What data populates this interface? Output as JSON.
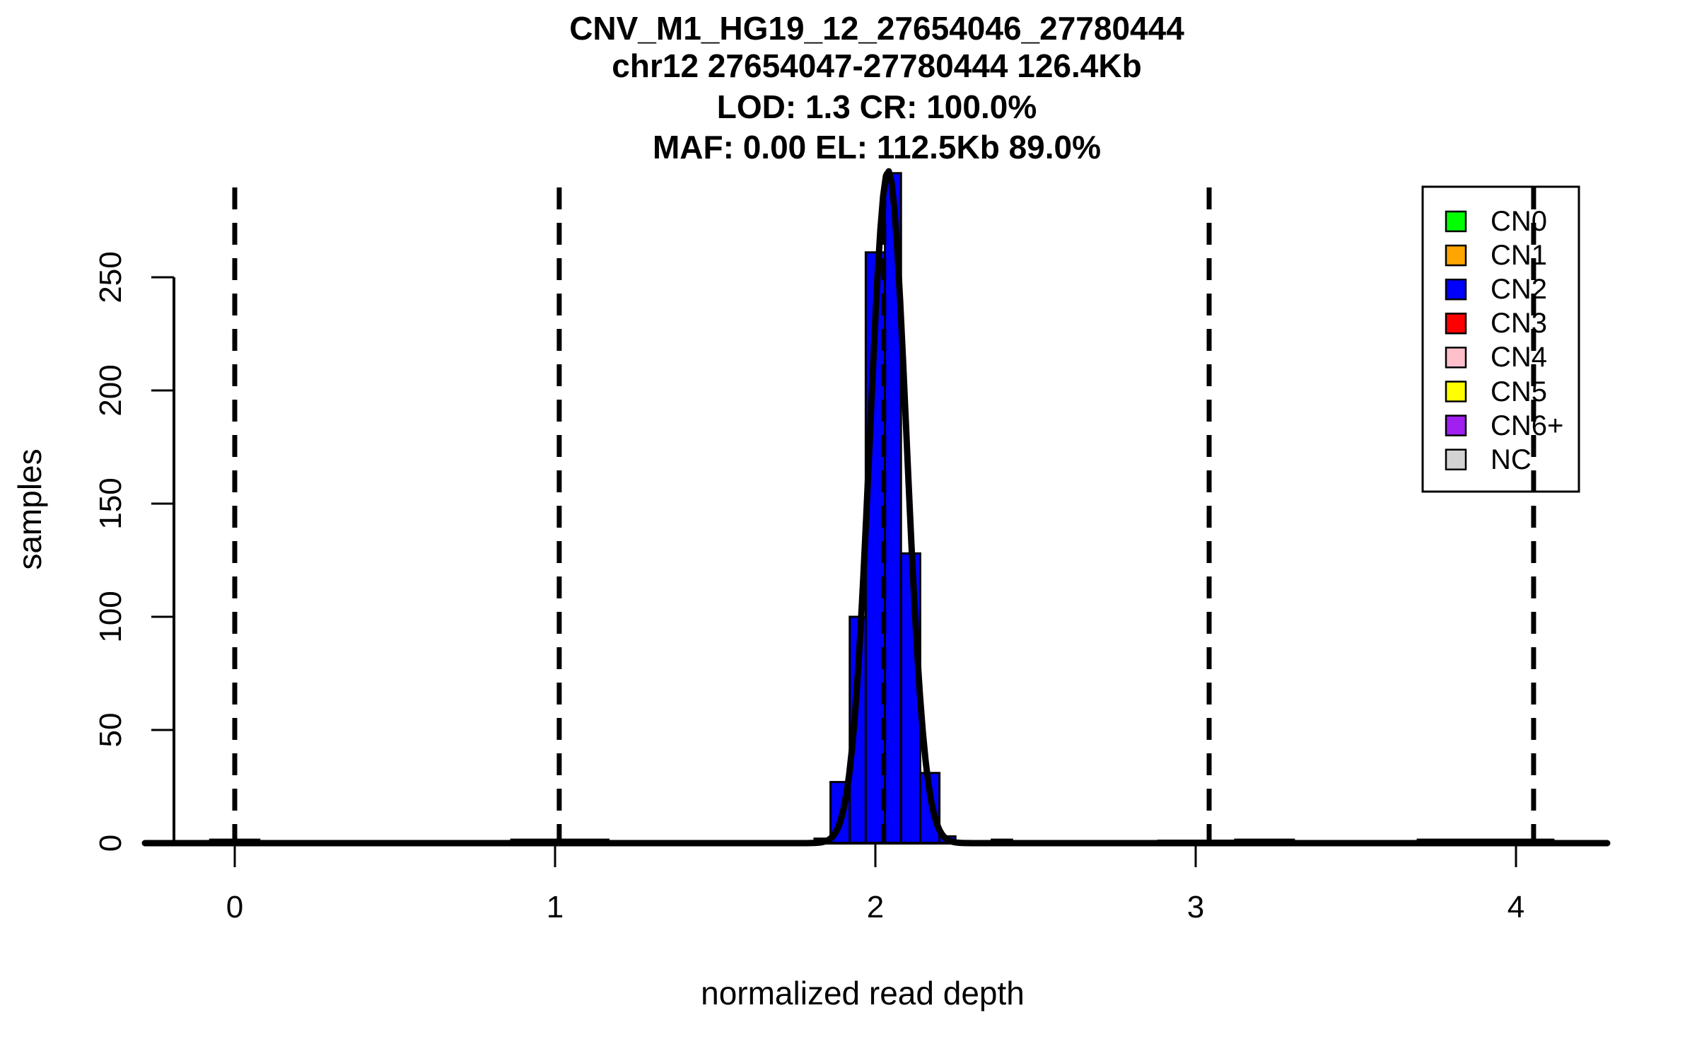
{
  "chart_data": {
    "type": "histogram",
    "title_lines": [
      "CNV_M1_HG19_12_27654046_27780444",
      "chr12 27654047-27780444 126.4Kb",
      "LOD: 1.3 CR: 100.0%",
      "MAF: 0.00 EL: 112.5Kb 89.0%"
    ],
    "xlabel": "normalized read depth",
    "ylabel": "samples",
    "x_ticks": [
      0,
      1,
      2,
      3,
      4
    ],
    "y_ticks": [
      0,
      50,
      100,
      150,
      200,
      250
    ],
    "xlim": [
      -0.28,
      4.29
    ],
    "ylim": [
      0,
      290
    ],
    "grid": false,
    "bar_color": "#0000FF",
    "bin_edges": [
      1.81,
      1.86,
      1.92,
      1.97,
      2.03,
      2.08,
      2.14,
      2.2,
      2.25
    ],
    "bin_counts": [
      2,
      27,
      100,
      261,
      296,
      128,
      31,
      3
    ],
    "minor_bumps": [
      {
        "x1": -0.08,
        "x2": 0.08,
        "count": 2
      },
      {
        "x1": 0.86,
        "x2": 1.17,
        "count": 2
      },
      {
        "x1": 2.36,
        "x2": 2.43,
        "count": 2
      },
      {
        "x1": 2.88,
        "x2": 3.12,
        "count": 1
      },
      {
        "x1": 3.12,
        "x2": 3.31,
        "count": 2
      },
      {
        "x1": 3.69,
        "x2": 4.12,
        "count": 2
      }
    ],
    "density_fit": {
      "mu": 2.04,
      "sigma": 0.057,
      "peak": 297
    },
    "dashed_lines_x": [
      0.0,
      1.013,
      2.026,
      3.042,
      4.055
    ],
    "legend": {
      "position": "top-right",
      "items": [
        {
          "label": "CN0",
          "color": "#00FF00"
        },
        {
          "label": "CN1",
          "color": "#FFA500"
        },
        {
          "label": "CN2",
          "color": "#0000FF"
        },
        {
          "label": "CN3",
          "color": "#FF0000"
        },
        {
          "label": "CN4",
          "color": "#FFC0CB"
        },
        {
          "label": "CN5",
          "color": "#FFFF00"
        },
        {
          "label": "CN6+",
          "color": "#A020F0"
        },
        {
          "label": "NC",
          "color": "#D3D3D3"
        }
      ]
    }
  }
}
